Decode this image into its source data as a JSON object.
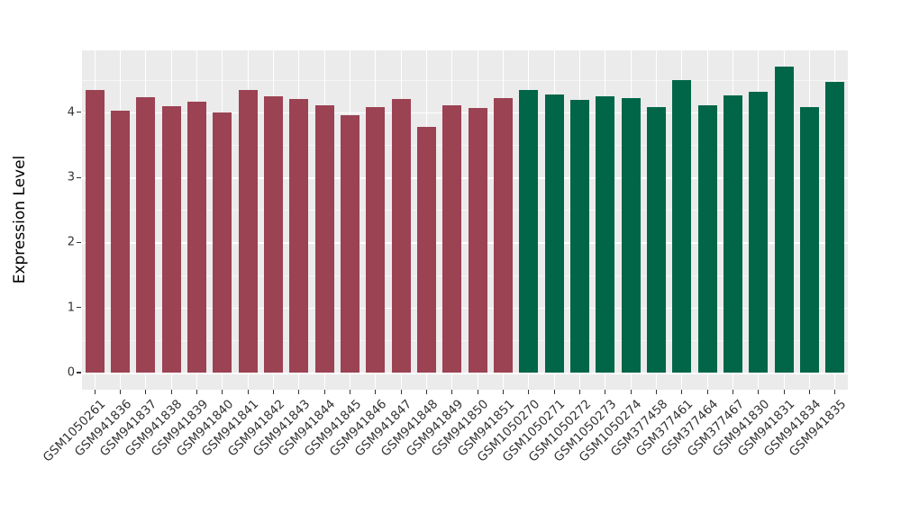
{
  "chart_data": {
    "type": "bar",
    "title": "",
    "xlabel": "",
    "ylabel": "Expression Level",
    "legend": "none",
    "grid": "on",
    "ylim": [
      0,
      4.95
    ],
    "yticks": [
      0,
      1,
      2,
      3,
      4
    ],
    "categories": [
      "GSM1050261",
      "GSM941836",
      "GSM941837",
      "GSM941838",
      "GSM941839",
      "GSM941840",
      "GSM941841",
      "GSM941842",
      "GSM941843",
      "GSM941844",
      "GSM941845",
      "GSM941846",
      "GSM941847",
      "GSM941848",
      "GSM941849",
      "GSM941850",
      "GSM941851",
      "GSM1050270",
      "GSM1050271",
      "GSM1050272",
      "GSM1050273",
      "GSM1050274",
      "GSM377458",
      "GSM377461",
      "GSM377464",
      "GSM377467",
      "GSM941830",
      "GSM941831",
      "GSM941834",
      "GSM941835"
    ],
    "values": [
      4.34,
      4.03,
      4.23,
      4.09,
      4.16,
      4.0,
      4.34,
      4.25,
      4.2,
      4.11,
      3.95,
      4.08,
      4.2,
      3.78,
      4.11,
      4.06,
      4.22,
      4.34,
      4.28,
      4.19,
      4.25,
      4.22,
      4.08,
      4.5,
      4.11,
      4.26,
      4.31,
      4.7,
      4.08,
      4.47
    ],
    "group_split_index": 17,
    "group_colors": [
      "#9B4253",
      "#006647"
    ],
    "panel_bg": "#EBEBEB",
    "grid_color": "#FFFFFF",
    "axis_text_color": "#333333"
  }
}
